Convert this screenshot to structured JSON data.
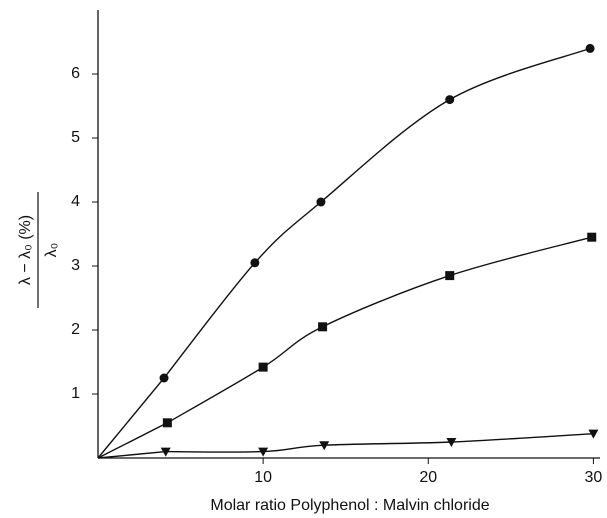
{
  "chart_data": {
    "type": "line",
    "x_label": "Molar ratio Polyphenol : Malvin chloride",
    "y_label": {
      "numerator": "λ − λ₀ (%)",
      "denominator": "λ₀"
    },
    "xlim": [
      0,
      30.4
    ],
    "xticks": [
      10,
      20,
      30
    ],
    "ylim": [
      0,
      7
    ],
    "yticks": [
      1,
      2,
      3,
      4,
      5,
      6
    ],
    "grid": false,
    "series": [
      {
        "marker": "circle",
        "color": "#111111",
        "x": [
          4,
          9.5,
          13.5,
          21.3,
          29.8
        ],
        "values": [
          1.25,
          3.05,
          4.0,
          5.6,
          6.4
        ]
      },
      {
        "marker": "square",
        "color": "#111111",
        "x": [
          4.2,
          10,
          13.6,
          21.3,
          29.9
        ],
        "values": [
          0.55,
          1.42,
          2.05,
          2.85,
          3.45
        ]
      },
      {
        "marker": "triangle",
        "color": "#111111",
        "x": [
          4.1,
          10,
          13.7,
          21.4,
          30
        ],
        "values": [
          0.1,
          0.1,
          0.2,
          0.25,
          0.38
        ]
      }
    ]
  }
}
